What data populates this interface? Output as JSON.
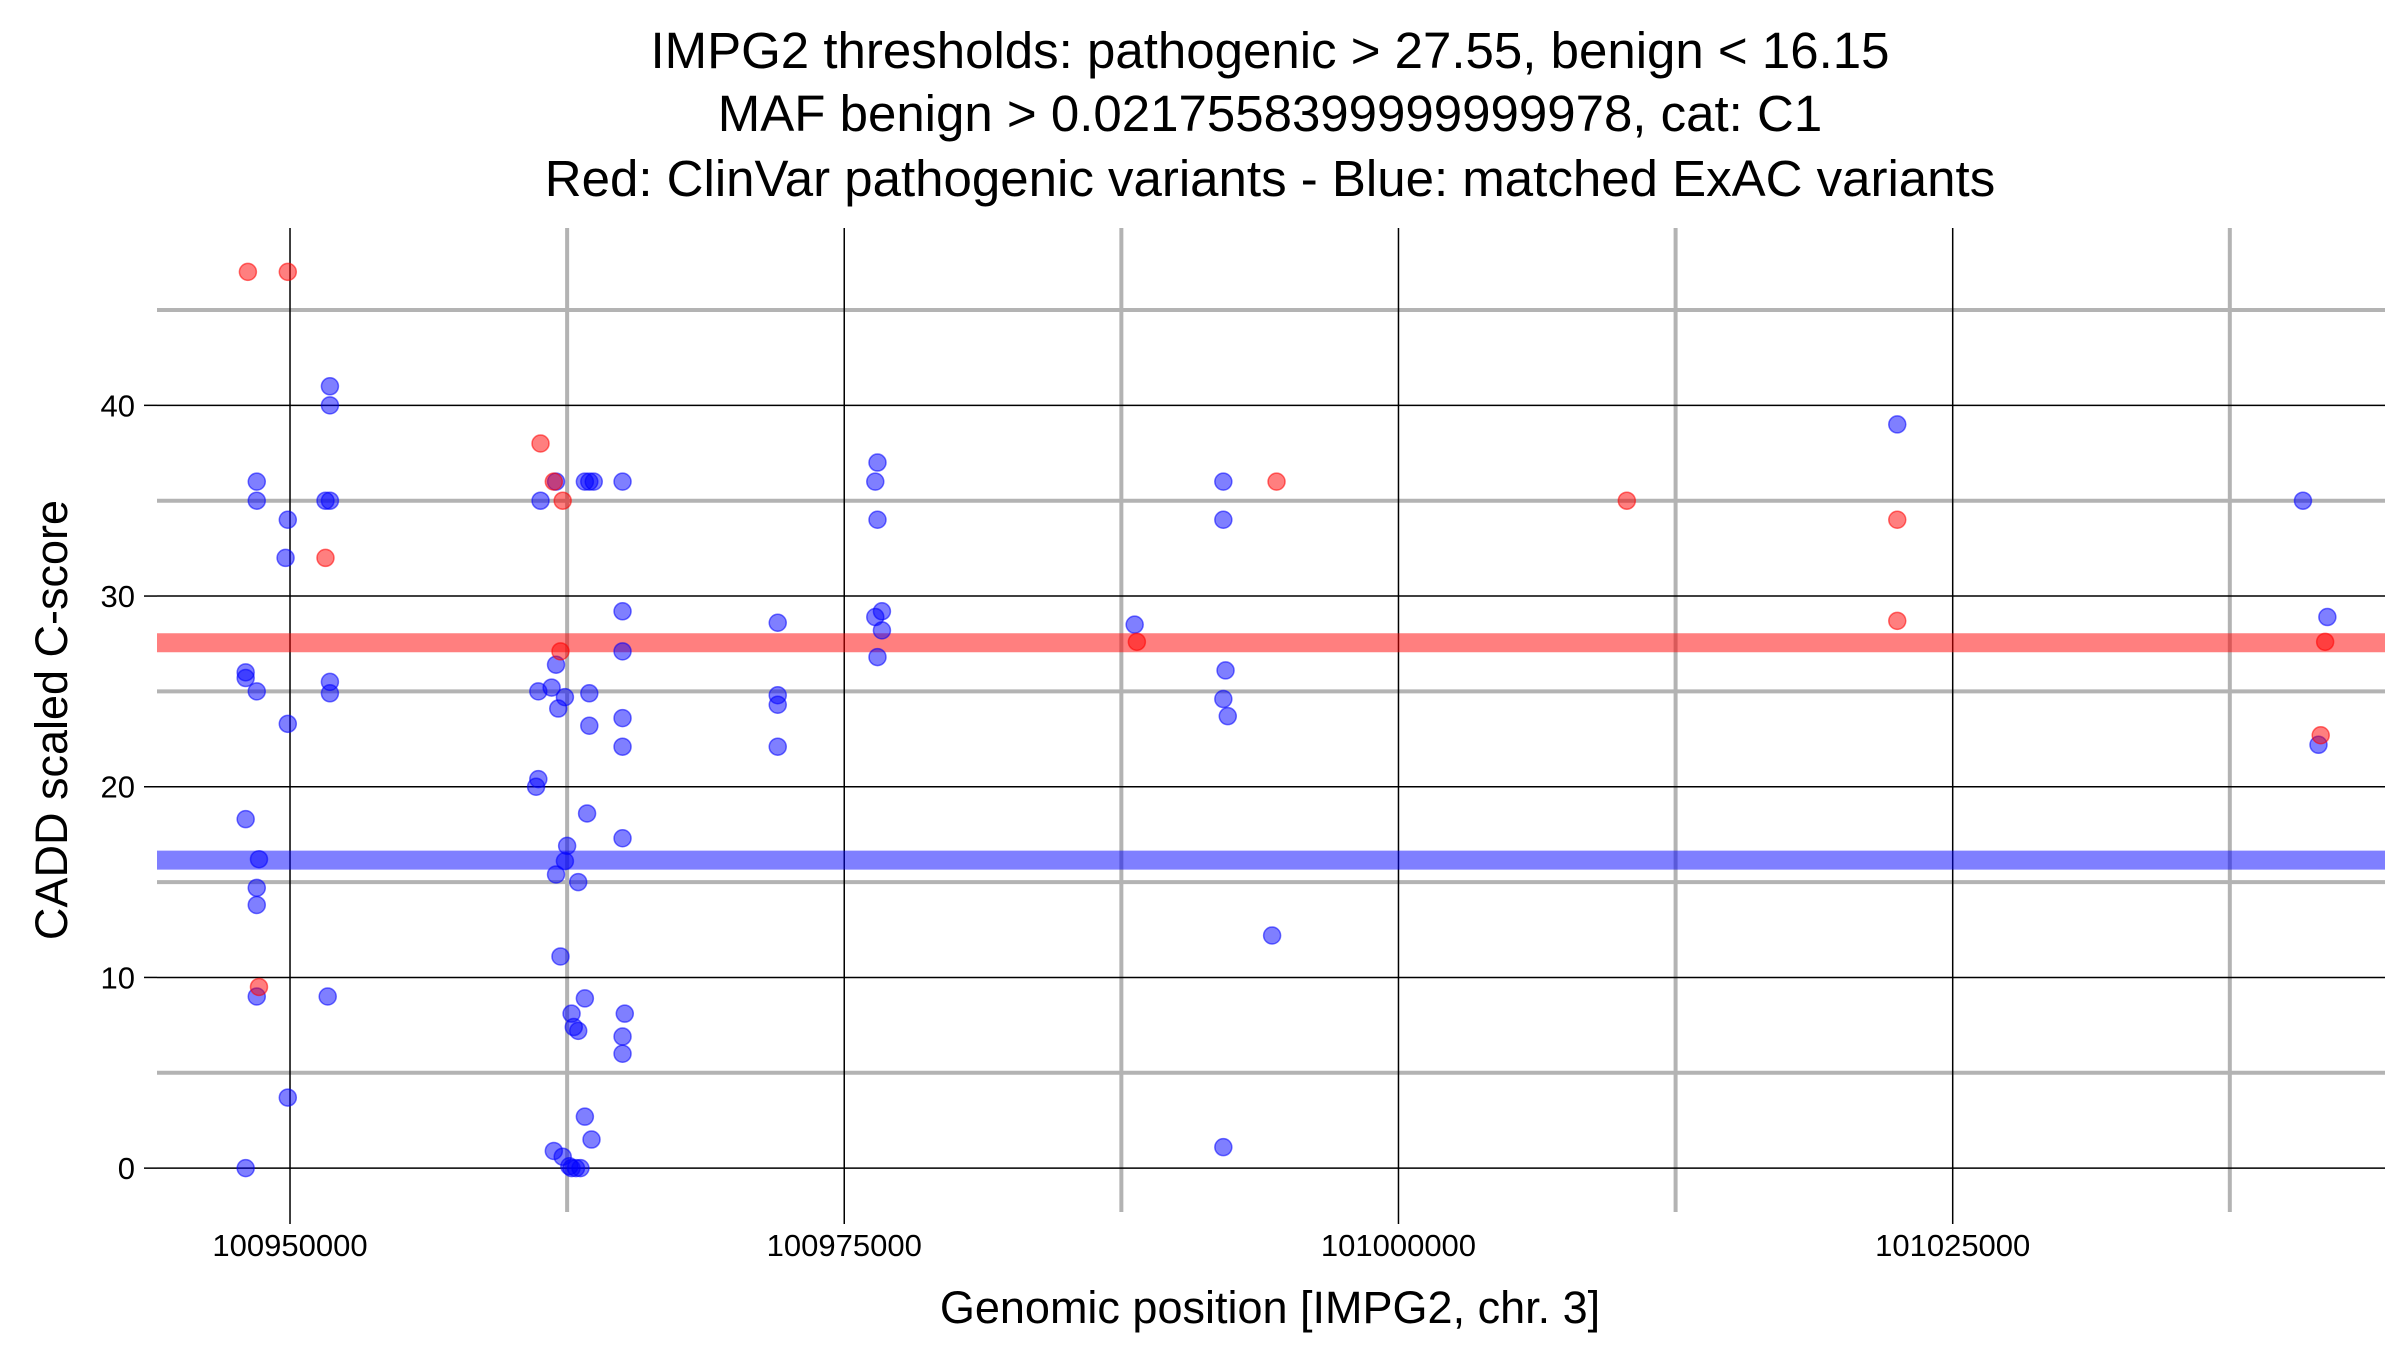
{
  "chart_data": {
    "type": "scatter",
    "title": [
      "IMPG2 thresholds: pathogenic > 27.55, benign < 16.15",
      "MAF benign > 0.0217558399999999978, cat: C1",
      "Red: ClinVar pathogenic variants - Blue: matched ExAC variants"
    ],
    "xlabel": "Genomic position [IMPG2, chr. 3]",
    "ylabel": "CADD scaled C-score",
    "xlim": [
      100944000,
      101044500
    ],
    "ylim": [
      -2.3,
      49.3
    ],
    "xticks": [
      100950000,
      100975000,
      101000000,
      101025000
    ],
    "xtick_labels": [
      "100950000",
      "100975000",
      "101000000",
      "101025000"
    ],
    "yticks": [
      0,
      10,
      20,
      30,
      40
    ],
    "ytick_labels": [
      "0",
      "10",
      "20",
      "30",
      "40"
    ],
    "x_minor_grid": [
      100962500,
      100987500,
      101012500,
      101037500
    ],
    "y_minor_grid": [
      5,
      15,
      25,
      35,
      45
    ],
    "thresholds": [
      {
        "name": "pathogenic",
        "value": 27.55,
        "color": "#ff0000"
      },
      {
        "name": "benign",
        "value": 16.15,
        "color": "#0000ff"
      }
    ],
    "colors": {
      "pathogenic": "#ff0000",
      "exac": "#0000ff",
      "major_grid": "#000000",
      "minor_grid": "#b3b3b3"
    },
    "series": [
      {
        "name": "ClinVar pathogenic variants",
        "color": "#ff0000",
        "points": [
          [
            100948100,
            47
          ],
          [
            100949900,
            47
          ],
          [
            100951600,
            32
          ],
          [
            100948600,
            9.5
          ],
          [
            100961300,
            38
          ],
          [
            100961900,
            36
          ],
          [
            100962300,
            35
          ],
          [
            100962200,
            27.1
          ],
          [
            100988200,
            27.6
          ],
          [
            100994500,
            36
          ],
          [
            101010300,
            35
          ],
          [
            101022500,
            34
          ],
          [
            101022500,
            28.7
          ],
          [
            101041600,
            22.7
          ],
          [
            101041800,
            27.6
          ]
        ]
      },
      {
        "name": "matched ExAC variants",
        "color": "#0000ff",
        "points": [
          [
            100951800,
            41
          ],
          [
            100951800,
            40
          ],
          [
            100948500,
            36
          ],
          [
            100948500,
            35
          ],
          [
            100951600,
            35
          ],
          [
            100951800,
            35
          ],
          [
            100949900,
            34
          ],
          [
            100949800,
            32
          ],
          [
            100948000,
            26
          ],
          [
            100948000,
            25.7
          ],
          [
            100948500,
            25
          ],
          [
            100951800,
            25.5
          ],
          [
            100951800,
            24.9
          ],
          [
            100949900,
            23.3
          ],
          [
            100948000,
            18.3
          ],
          [
            100948600,
            16.2
          ],
          [
            100948500,
            14.7
          ],
          [
            100948500,
            13.8
          ],
          [
            100948500,
            9
          ],
          [
            100951700,
            9
          ],
          [
            100949900,
            3.7
          ],
          [
            100948000,
            0
          ],
          [
            100961300,
            35
          ],
          [
            100962000,
            36
          ],
          [
            100963300,
            36
          ],
          [
            100963500,
            36
          ],
          [
            100963700,
            36
          ],
          [
            100965000,
            36
          ],
          [
            100965000,
            29.2
          ],
          [
            100965000,
            27.1
          ],
          [
            100962000,
            26.4
          ],
          [
            100961200,
            25
          ],
          [
            100961800,
            25.2
          ],
          [
            100962400,
            24.7
          ],
          [
            100963500,
            24.9
          ],
          [
            100962100,
            24.1
          ],
          [
            100963500,
            23.2
          ],
          [
            100965000,
            23.6
          ],
          [
            100965000,
            22.1
          ],
          [
            100961200,
            20.4
          ],
          [
            100961100,
            20
          ],
          [
            100963400,
            18.6
          ],
          [
            100965000,
            17.3
          ],
          [
            100962500,
            16.9
          ],
          [
            100962400,
            16.1
          ],
          [
            100962000,
            15.4
          ],
          [
            100963000,
            15
          ],
          [
            100962200,
            11.1
          ],
          [
            100963300,
            8.9
          ],
          [
            100962700,
            8.1
          ],
          [
            100965100,
            8.1
          ],
          [
            100962800,
            7.4
          ],
          [
            100963000,
            7.2
          ],
          [
            100965000,
            6.9
          ],
          [
            100965000,
            6
          ],
          [
            100963300,
            2.7
          ],
          [
            100963600,
            1.5
          ],
          [
            100961900,
            0.9
          ],
          [
            100962300,
            0.6
          ],
          [
            100962600,
            0.1
          ],
          [
            100962900,
            0
          ],
          [
            100963100,
            0
          ],
          [
            100962700,
            0
          ],
          [
            100972000,
            28.6
          ],
          [
            100972000,
            24.8
          ],
          [
            100972000,
            24.3
          ],
          [
            100972000,
            22.1
          ],
          [
            100976500,
            37
          ],
          [
            100976400,
            36
          ],
          [
            100976500,
            34
          ],
          [
            100976700,
            29.2
          ],
          [
            100976400,
            28.9
          ],
          [
            100976700,
            28.2
          ],
          [
            100976500,
            26.8
          ],
          [
            100988100,
            28.5
          ],
          [
            100992100,
            36
          ],
          [
            100992100,
            34
          ],
          [
            100992200,
            26.1
          ],
          [
            100992100,
            24.6
          ],
          [
            100992300,
            23.7
          ],
          [
            100994300,
            12.2
          ],
          [
            100992100,
            1.1
          ],
          [
            101022500,
            39
          ],
          [
            101040800,
            35
          ],
          [
            101041900,
            28.9
          ],
          [
            101041500,
            22.2
          ]
        ]
      }
    ]
  }
}
